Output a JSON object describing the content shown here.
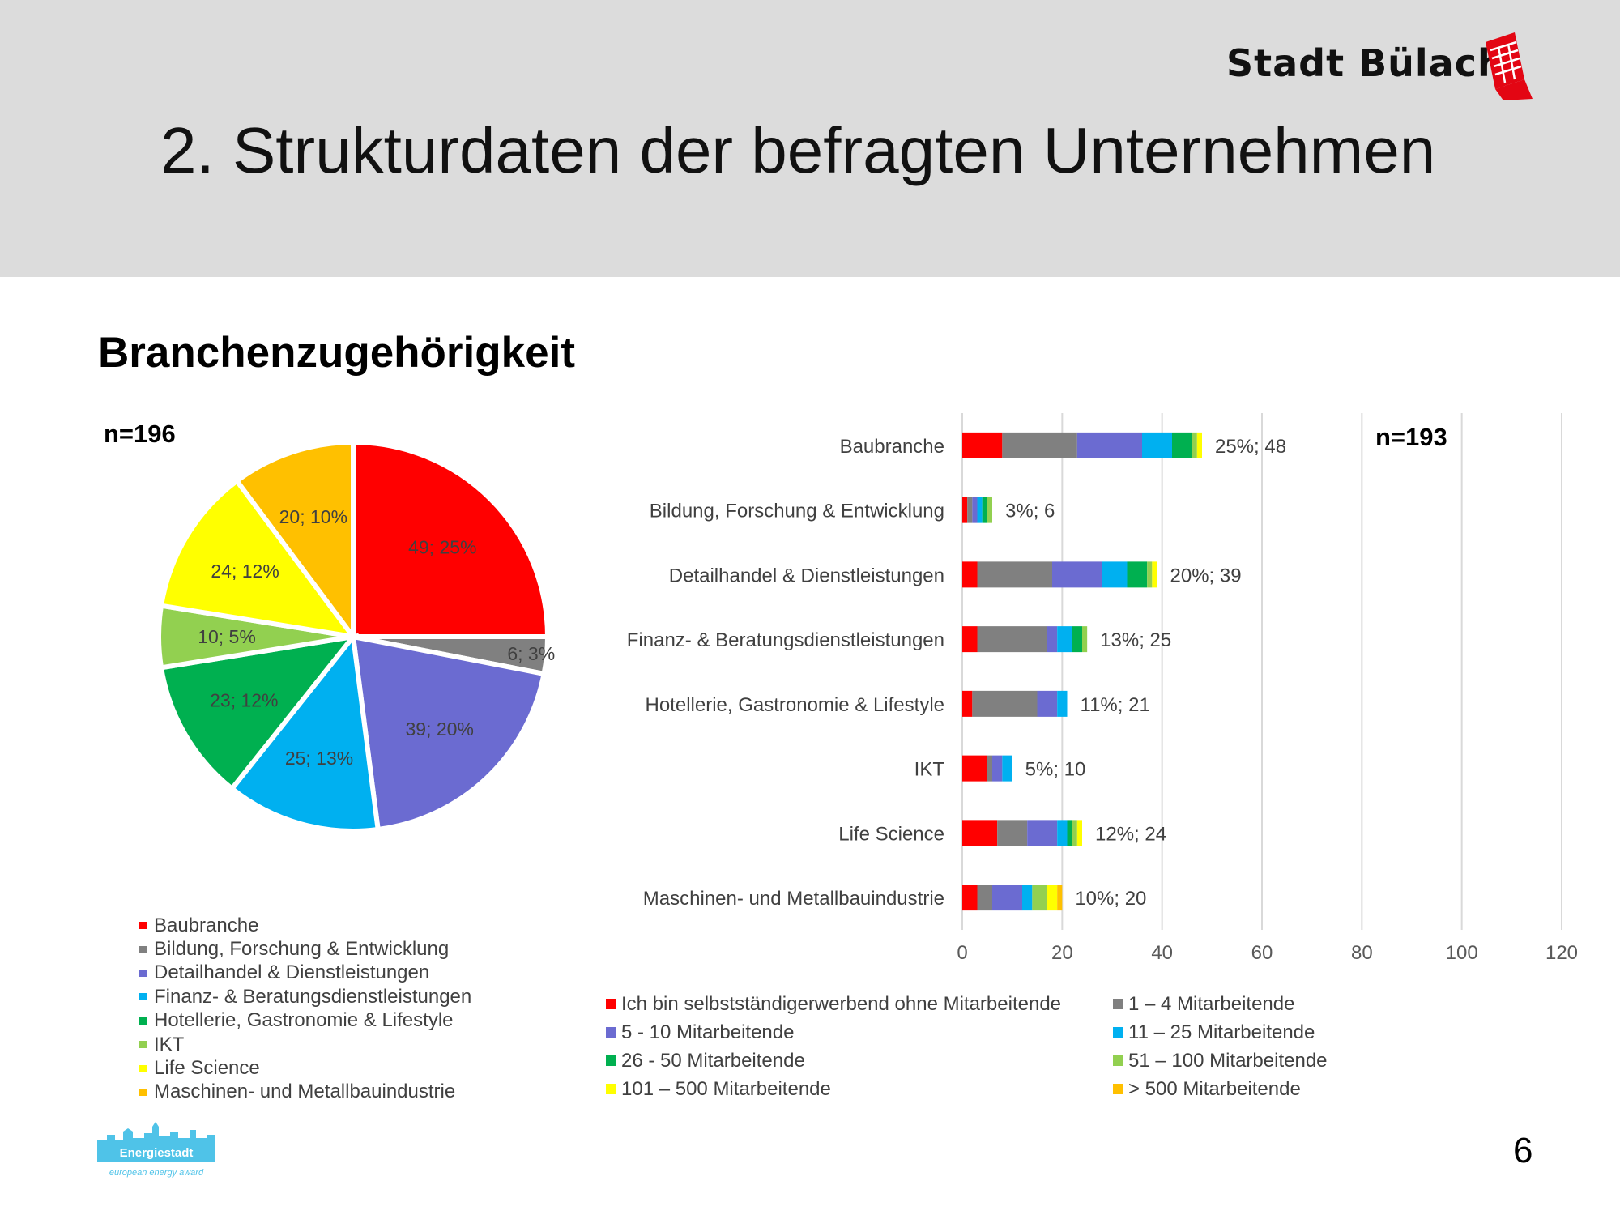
{
  "header": {
    "brand": "Stadt Bülach",
    "title": "2. Strukturdaten der befragten Unternehmen"
  },
  "subtitle": "Branchenzugehörigkeit",
  "colors": {
    "header_bg": "#dcdcdc",
    "sizes": [
      "#ff0000",
      "#808080",
      "#6b6bd1",
      "#00b0f0",
      "#00b050",
      "#92d050",
      "#ffff00",
      "#ffc000"
    ],
    "industries": [
      "#ff0000",
      "#808080",
      "#6b6bd1",
      "#00b0f0",
      "#00b050",
      "#92d050",
      "#ffff00",
      "#ffc000"
    ]
  },
  "chart_data": [
    {
      "type": "pie",
      "n_label": "n=196",
      "categories": [
        "Baubranche",
        "Bildung, Forschung & Entwicklung",
        "Detailhandel & Dienstleistungen",
        "Finanz- & Beratungsdienstleistungen",
        "Hotellerie, Gastronomie & Lifestyle",
        "IKT",
        "Life Science",
        "Maschinen- und Metallbauindustrie"
      ],
      "values": [
        49,
        6,
        39,
        25,
        23,
        10,
        24,
        20
      ],
      "data_labels": [
        "49; 25%",
        "6; 3%",
        "39; 20%",
        "25; 13%",
        "23; 12%",
        "10; 5%",
        "24; 12%",
        "20; 10%"
      ],
      "legend_position": "bottom-left"
    },
    {
      "type": "bar",
      "orientation": "horizontal",
      "stacked": true,
      "n_label": "n=193",
      "categories": [
        "Baubranche",
        "Bildung, Forschung & Entwicklung",
        "Detailhandel & Dienstleistungen",
        "Finanz- & Beratungsdienstleistungen",
        "Hotellerie, Gastronomie & Lifestyle",
        "IKT",
        "Life Science",
        "Maschinen- und Metallbauindustrie"
      ],
      "series": [
        {
          "name": "Ich bin selbstständigerwerbend ohne Mitarbeitende",
          "values": [
            8,
            1,
            3,
            3,
            2,
            5,
            7,
            3
          ]
        },
        {
          "name": "1 – 4 Mitarbeitende",
          "values": [
            15,
            1,
            15,
            14,
            13,
            1,
            6,
            3
          ]
        },
        {
          "name": "5 - 10 Mitarbeitende",
          "values": [
            13,
            1,
            10,
            2,
            4,
            2,
            6,
            6
          ]
        },
        {
          "name": "11 – 25 Mitarbeitende",
          "values": [
            6,
            1,
            5,
            3,
            2,
            2,
            2,
            2
          ]
        },
        {
          "name": "26 - 50 Mitarbeitende",
          "values": [
            4,
            1,
            4,
            2,
            0,
            0,
            1,
            0
          ]
        },
        {
          "name": "51 – 100 Mitarbeitende",
          "values": [
            1,
            1,
            1,
            1,
            0,
            0,
            1,
            3
          ]
        },
        {
          "name": "101 – 500 Mitarbeitende",
          "values": [
            1,
            0,
            1,
            0,
            0,
            0,
            1,
            2
          ]
        },
        {
          "name": "> 500 Mitarbeitende",
          "values": [
            0,
            0,
            0,
            0,
            0,
            0,
            0,
            1
          ]
        }
      ],
      "data_labels": [
        "25%; 48",
        "3%; 6",
        "20%; 39",
        "13%; 25",
        "11%; 21",
        "5%; 10",
        "12%; 24",
        "10%; 20"
      ],
      "xlim": [
        0,
        120
      ],
      "xticks": [
        "0",
        "20",
        "40",
        "60",
        "80",
        "100",
        "120"
      ],
      "grid": true,
      "legend_position": "bottom"
    }
  ],
  "page_number": "6",
  "energie_logo": {
    "name": "Energiestadt",
    "tagline": "european energy award"
  }
}
